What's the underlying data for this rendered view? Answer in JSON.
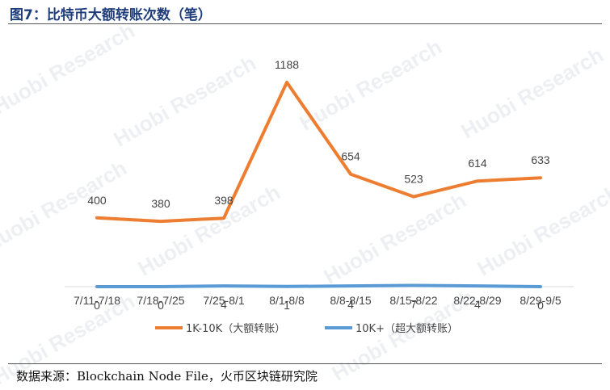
{
  "figure": {
    "title": "图7：比特币大额转账次数（笔）",
    "source": "数据来源：Blockchain Node File，火币区块链研究院",
    "watermark": "Huobi Research"
  },
  "chart_data": {
    "type": "line",
    "title": "图7：比特币大额转账次数（笔）",
    "xlabel": "",
    "ylabel": "",
    "grid": false,
    "legend_position": "bottom",
    "categories": [
      "7/11-7/18",
      "7/18-7/25",
      "7/25-8/1",
      "8/1-8/8",
      "8/8-8/15",
      "8/15-8/22",
      "8/22-8/29",
      "8/29-9/5"
    ],
    "series": [
      {
        "name": "1K-10K（大额转账）",
        "color": "#ed7d31",
        "values": [
          400,
          380,
          398,
          1188,
          654,
          523,
          614,
          633
        ]
      },
      {
        "name": "10K+（超大额转账）",
        "color": "#5b9bd5",
        "values": [
          0,
          0,
          4,
          1,
          4,
          7,
          4,
          0
        ]
      }
    ]
  }
}
